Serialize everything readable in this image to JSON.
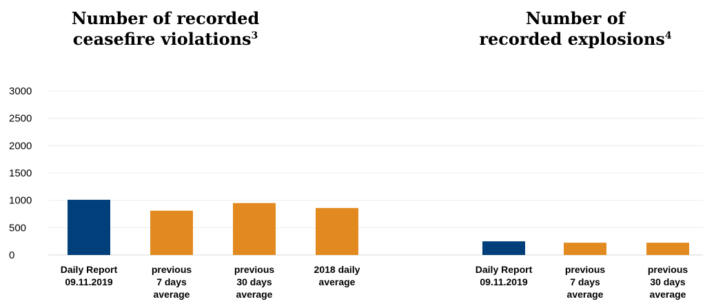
{
  "chart_data": [
    {
      "type": "bar",
      "title": "Number of recorded ceasefire violations",
      "title_line1": "Number of recorded",
      "title_line2": "ceasefire violations",
      "title_footnote": "3",
      "categories": [
        [
          "Daily Report",
          "09.11.2019"
        ],
        [
          "previous",
          "7 days",
          "average"
        ],
        [
          "previous",
          "30 days",
          "average"
        ],
        [
          "2018 daily",
          "average"
        ]
      ],
      "values": [
        1010,
        810,
        950,
        860
      ],
      "colors": [
        "#003f7a",
        "#e28a1f",
        "#e28a1f",
        "#e28a1f"
      ],
      "ylim": [
        0,
        3000
      ],
      "yticks": [
        0,
        500,
        1000,
        1500,
        2000,
        2500,
        3000
      ],
      "grid": true
    },
    {
      "type": "bar",
      "title": "Number of recorded explosions",
      "title_line1": "Number of",
      "title_line2": "recorded explosions",
      "title_footnote": "4",
      "categories": [
        [
          "Daily Report",
          "09.11.2019"
        ],
        [
          "previous",
          "7 days",
          "average"
        ],
        [
          "previous",
          "30 days",
          "average"
        ]
      ],
      "values": [
        250,
        225,
        225
      ],
      "colors": [
        "#003f7a",
        "#e28a1f",
        "#e28a1f"
      ],
      "ylim": [
        0,
        3000
      ],
      "grid": true
    }
  ]
}
